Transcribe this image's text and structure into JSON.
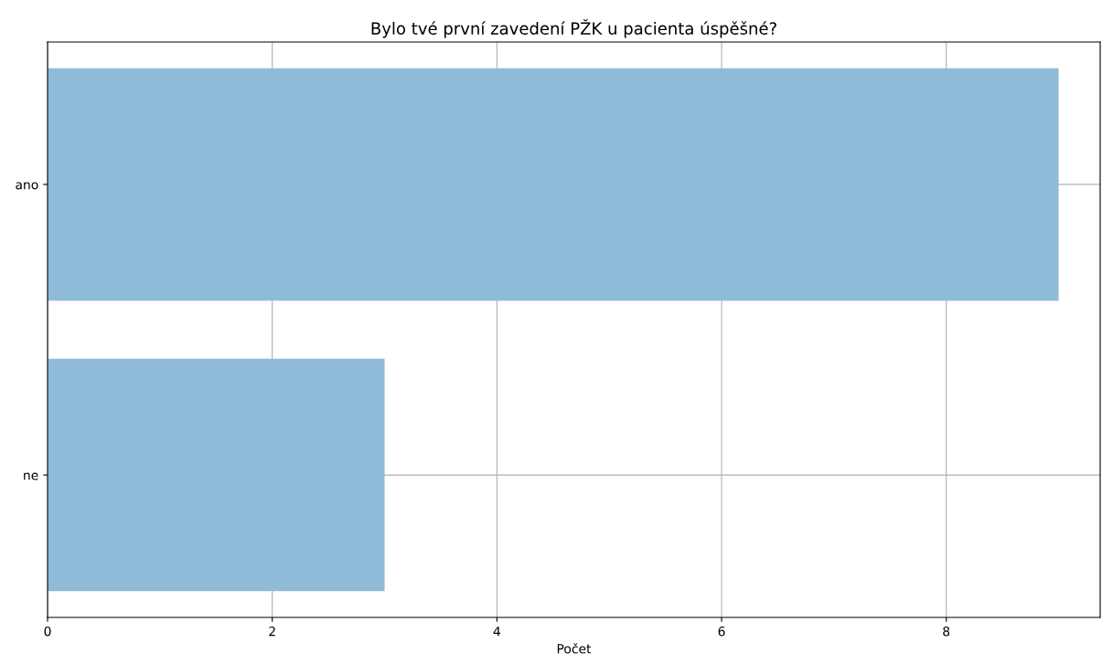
{
  "chart_data": {
    "type": "bar",
    "orientation": "horizontal",
    "title": "Bylo tvé první zavedení PŽK u pacienta úspěšné?",
    "xlabel": "Počet",
    "categories": [
      "ano",
      "ne"
    ],
    "values": [
      9,
      3
    ],
    "color": "#8fbbd9",
    "xlim": [
      0,
      9.37
    ],
    "xticks": [
      0,
      2,
      4,
      6,
      8
    ],
    "grid": true
  }
}
